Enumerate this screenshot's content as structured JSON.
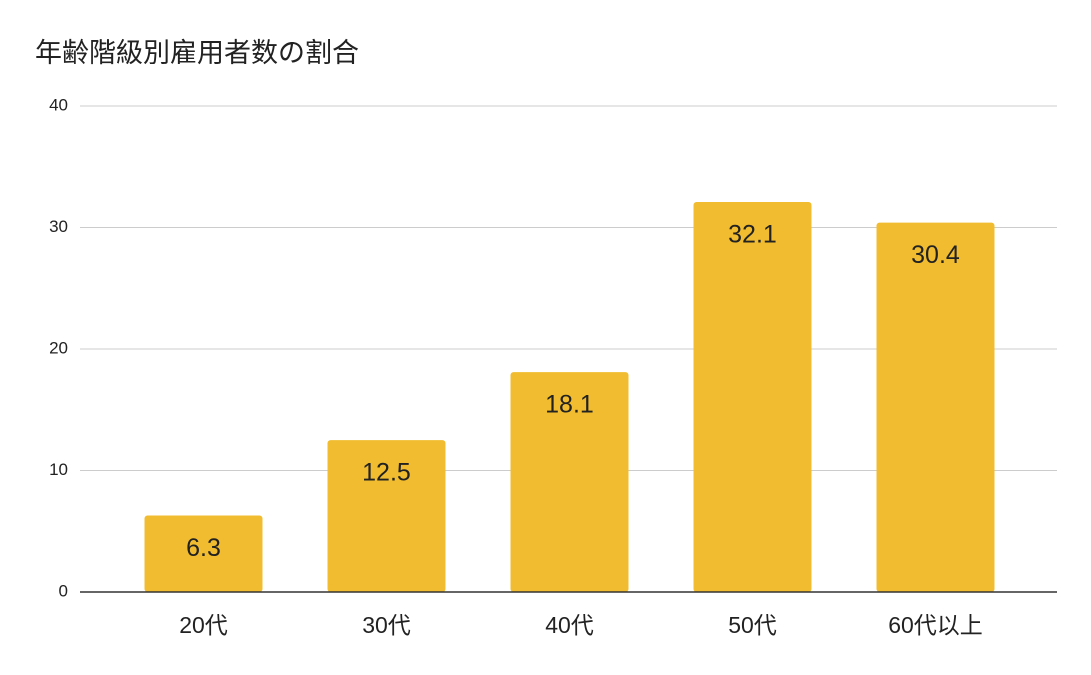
{
  "chart_data": {
    "type": "bar",
    "title": "年齢階級別雇用者数の割合",
    "categories": [
      "20代",
      "30代",
      "40代",
      "50代",
      "60代以上"
    ],
    "values": [
      6.3,
      12.5,
      18.1,
      32.1,
      30.4
    ],
    "color": "#f1bc2f",
    "ylim": [
      0,
      40
    ],
    "yticks": [
      0,
      10,
      20,
      30,
      40
    ],
    "grid": true
  }
}
